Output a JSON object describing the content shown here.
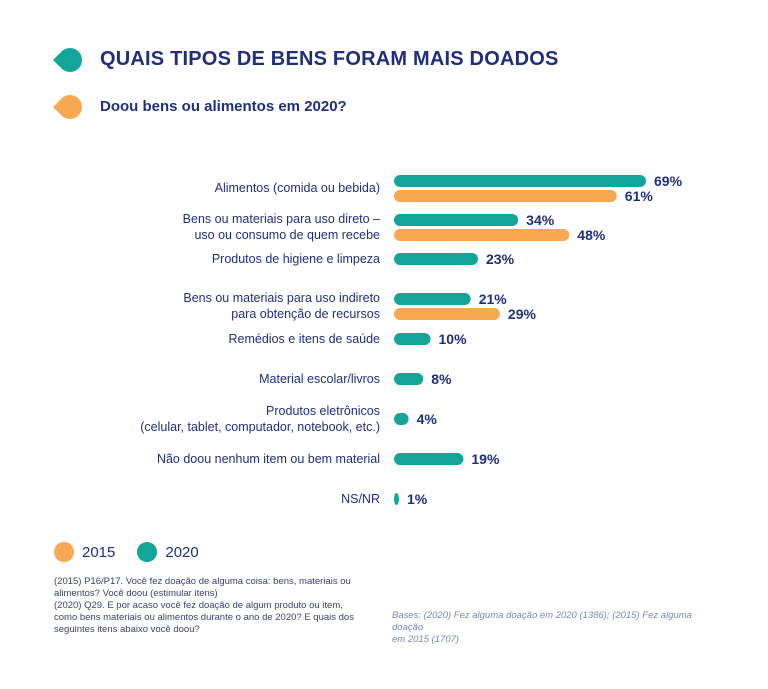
{
  "title": "QUAIS TIPOS DE BENS FORAM MAIS DOADOS",
  "subtitle": "Doou bens ou alimentos em 2020?",
  "colors": {
    "y2015": "#f7a851",
    "y2020": "#13a59a",
    "text": "#1f2f7d"
  },
  "legend": [
    {
      "label": "2015",
      "color": "#f7a851"
    },
    {
      "label": "2020",
      "color": "#13a59a"
    }
  ],
  "note_lines": [
    "(2015) P16/P17. Você fez doação de alguma coisa: bens, materiais ou",
    "alimentos? Você doou (estimular itens)",
    "(2020) Q29. E por acaso você fez doação de algum produto ou item,",
    "como bens materiais ou alimentos durante o ano de 2020? E quais dos",
    "seguintes itens abaixo você doou?"
  ],
  "bases_lines": [
    "Bases: (2020) Fez alguma doação em 2020 (1386); (2015) Fez alguma doação",
    "em 2015 (1707)"
  ],
  "chart_data": {
    "type": "bar",
    "orientation": "horizontal",
    "unit": "%",
    "categories": [
      [
        "Alimentos (comida ou bebida)"
      ],
      [
        "Bens ou materiais para uso direto –",
        "uso ou consumo de quem recebe"
      ],
      [
        "Produtos de higiene e limpeza"
      ],
      [
        "Bens ou materiais para uso indireto",
        "para obtenção de recursos"
      ],
      [
        "Remédios e itens de saúde"
      ],
      [
        "Material escolar/livros"
      ],
      [
        "Produtos eletrônicos",
        "(celular, tablet, computador, notebook, etc.)"
      ],
      [
        "Não doou nenhum item ou bem material"
      ],
      [
        "NS/NR"
      ]
    ],
    "series": [
      {
        "name": "2020",
        "values": [
          69,
          34,
          23,
          21,
          10,
          8,
          4,
          19,
          1
        ],
        "labels": [
          "69%",
          "34%",
          "23%",
          "21%",
          "10%",
          "8%",
          "4%",
          "19%",
          "1%"
        ]
      },
      {
        "name": "2015",
        "values": [
          61,
          48,
          null,
          29,
          null,
          null,
          null,
          null,
          null
        ],
        "labels": [
          "61%",
          "48%",
          "",
          "29%",
          "",
          "",
          "",
          "",
          ""
        ]
      }
    ],
    "xlim": [
      0,
      69
    ]
  }
}
